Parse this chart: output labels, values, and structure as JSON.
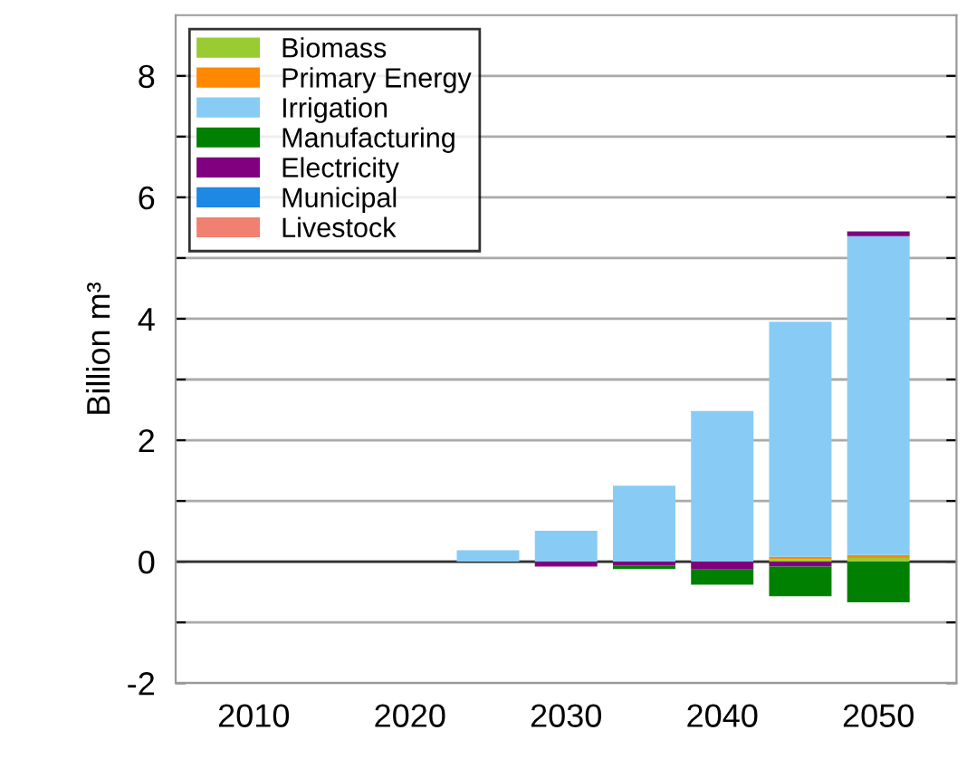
{
  "chart_data": {
    "type": "bar",
    "stacked": true,
    "ylabel": "Billion m³",
    "x": [
      2010,
      2015,
      2020,
      2025,
      2030,
      2035,
      2040,
      2045,
      2050
    ],
    "series": [
      {
        "name": "Biomass",
        "color": "#99cc33",
        "values": [
          0,
          0,
          0,
          0,
          0,
          0,
          null,
          0.04,
          0.06
        ]
      },
      {
        "name": "Primary Energy",
        "color": "#ff8800",
        "values": [
          0,
          0,
          0,
          0,
          0,
          0,
          null,
          0.04,
          0.05
        ]
      },
      {
        "name": "Irrigation",
        "color": "#88ccf5",
        "values": [
          0,
          0,
          0,
          0.19,
          0.51,
          1.25,
          2.48,
          3.87,
          5.25
        ]
      },
      {
        "name": "Manufacturing",
        "color": "#008000",
        "values": [
          0,
          0,
          0,
          0,
          0,
          -0.06,
          -0.25,
          -0.49,
          -0.67
        ]
      },
      {
        "name": "Electricity",
        "color": "#800080",
        "values": [
          0,
          0,
          0,
          0,
          -0.08,
          -0.06,
          -0.13,
          -0.08,
          0.08
        ]
      },
      {
        "name": "Municipal",
        "color": "#1e88e5",
        "values": [
          0,
          0,
          null,
          0,
          0,
          0,
          0,
          0,
          0
        ]
      },
      {
        "name": "Livestock",
        "color": "#f08070",
        "values": [
          0,
          0,
          0,
          0,
          0,
          0,
          0,
          0,
          0
        ]
      }
    ],
    "xlim": [
      2005,
      2055
    ],
    "xticks": [
      2010,
      2020,
      2030,
      2040,
      2050
    ],
    "ylim": [
      -2,
      9
    ],
    "yticks": [
      -2,
      {
        "value": -1,
        "label": null
      },
      0,
      {
        "value": 1,
        "label": null
      },
      2,
      {
        "value": 3,
        "label": null
      },
      4,
      {
        "value": 5,
        "label": null
      },
      6,
      {
        "value": 7,
        "label": null
      },
      8
    ],
    "grid": "y",
    "legend": "top left"
  }
}
